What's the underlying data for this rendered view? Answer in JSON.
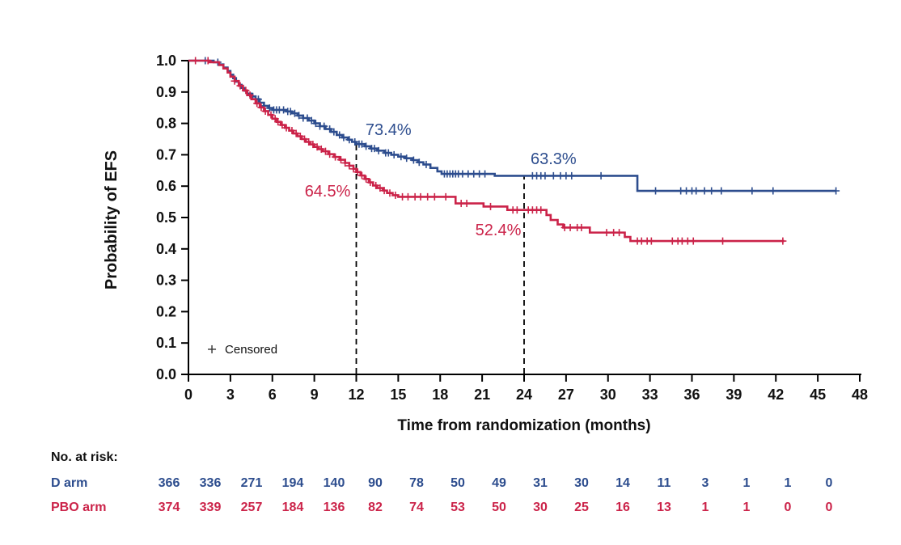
{
  "chart_data": {
    "type": "line",
    "subtype": "kaplan-meier-step",
    "xlabel": "Time from randomization (months)",
    "ylabel": "Probability of EFS",
    "xlim": [
      0,
      48
    ],
    "ylim": [
      0.0,
      1.0
    ],
    "grid": false,
    "x_ticks": [
      0,
      3,
      6,
      9,
      12,
      15,
      18,
      21,
      24,
      27,
      30,
      33,
      36,
      39,
      42,
      45,
      48
    ],
    "y_ticks": [
      "0.0",
      "0.1",
      "0.2",
      "0.3",
      "0.4",
      "0.5",
      "0.6",
      "0.7",
      "0.8",
      "0.9",
      "1.0"
    ],
    "reference_lines": [
      {
        "x": 12,
        "y_top": 0.734,
        "style": "dashed"
      },
      {
        "x": 24,
        "y_top": 0.633,
        "style": "dashed"
      }
    ],
    "annotations": [
      {
        "text": "73.4%",
        "x": 14.3,
        "y": 0.781,
        "color": "#2d4d8e"
      },
      {
        "text": "64.5%",
        "x": 9.95,
        "y": 0.585,
        "color": "#cb2349"
      },
      {
        "text": "63.3%",
        "x": 26.1,
        "y": 0.688,
        "color": "#2d4d8e"
      },
      {
        "text": "52.4%",
        "x": 22.15,
        "y": 0.461,
        "color": "#cb2349"
      }
    ],
    "censored_legend": {
      "marker": "+",
      "label": "Censored",
      "x": 1.68,
      "y": 0.08
    },
    "series": [
      {
        "name": "D arm",
        "color": "#2d4d8e",
        "milestones": [
          {
            "month": 12,
            "value_pct": "73.4%"
          },
          {
            "month": 24,
            "value_pct": "63.3%"
          }
        ],
        "steps": [
          [
            0,
            1.0
          ],
          [
            1.8,
            0.995
          ],
          [
            2.2,
            0.988
          ],
          [
            2.5,
            0.978
          ],
          [
            2.8,
            0.967
          ],
          [
            3.0,
            0.955
          ],
          [
            3.2,
            0.944
          ],
          [
            3.4,
            0.933
          ],
          [
            3.6,
            0.923
          ],
          [
            3.8,
            0.913
          ],
          [
            4.0,
            0.904
          ],
          [
            4.2,
            0.895
          ],
          [
            4.5,
            0.886
          ],
          [
            4.8,
            0.877
          ],
          [
            5.1,
            0.866
          ],
          [
            5.4,
            0.856
          ],
          [
            5.7,
            0.849
          ],
          [
            6.0,
            0.843
          ],
          [
            7.0,
            0.838
          ],
          [
            7.4,
            0.832
          ],
          [
            7.8,
            0.825
          ],
          [
            8.2,
            0.817
          ],
          [
            8.6,
            0.809
          ],
          [
            9.0,
            0.8
          ],
          [
            9.4,
            0.791
          ],
          [
            9.8,
            0.782
          ],
          [
            10.2,
            0.773
          ],
          [
            10.6,
            0.763
          ],
          [
            11.0,
            0.755
          ],
          [
            11.4,
            0.748
          ],
          [
            11.7,
            0.741
          ],
          [
            12.0,
            0.734
          ],
          [
            12.6,
            0.727
          ],
          [
            13.0,
            0.72
          ],
          [
            13.5,
            0.713
          ],
          [
            14.0,
            0.706
          ],
          [
            14.5,
            0.7
          ],
          [
            15.0,
            0.694
          ],
          [
            15.5,
            0.689
          ],
          [
            16.0,
            0.683
          ],
          [
            16.4,
            0.676
          ],
          [
            16.8,
            0.669
          ],
          [
            17.3,
            0.658
          ],
          [
            17.8,
            0.647
          ],
          [
            18.1,
            0.639
          ],
          [
            21.9,
            0.633
          ],
          [
            32.1,
            0.585
          ]
        ],
        "end_month": 46.3,
        "censor_times": [
          1.2,
          2.1,
          4.6,
          5.0,
          5.4,
          5.8,
          6.1,
          6.3,
          6.5,
          6.8,
          7.1,
          7.3,
          7.6,
          7.9,
          8.2,
          8.5,
          8.8,
          9.1,
          9.4,
          9.7,
          10.1,
          10.4,
          10.8,
          11.1,
          11.5,
          11.9,
          12.2,
          12.4,
          12.7,
          13.1,
          13.3,
          13.6,
          14.1,
          14.3,
          14.7,
          15.2,
          15.6,
          16.1,
          16.5,
          17.0,
          18.3,
          18.5,
          18.7,
          18.9,
          19.1,
          19.3,
          19.6,
          20.0,
          20.4,
          20.8,
          21.2,
          24.6,
          24.9,
          25.2,
          25.5,
          26.1,
          26.6,
          27.0,
          27.4,
          29.5,
          33.4,
          35.2,
          35.6,
          36.0,
          36.3,
          36.9,
          37.4,
          38.1,
          40.3,
          41.8,
          46.3
        ]
      },
      {
        "name": "PBO arm",
        "color": "#cb2349",
        "milestones": [
          {
            "month": 12,
            "value_pct": "64.5%"
          },
          {
            "month": 24,
            "value_pct": "52.4%"
          }
        ],
        "steps": [
          [
            0,
            1.0
          ],
          [
            1.5,
            0.995
          ],
          [
            2.2,
            0.986
          ],
          [
            2.5,
            0.975
          ],
          [
            2.8,
            0.962
          ],
          [
            3.0,
            0.949
          ],
          [
            3.3,
            0.935
          ],
          [
            3.6,
            0.92
          ],
          [
            3.9,
            0.905
          ],
          [
            4.2,
            0.89
          ],
          [
            4.5,
            0.877
          ],
          [
            4.8,
            0.864
          ],
          [
            5.1,
            0.851
          ],
          [
            5.4,
            0.839
          ],
          [
            5.7,
            0.827
          ],
          [
            6.0,
            0.815
          ],
          [
            6.3,
            0.805
          ],
          [
            6.6,
            0.795
          ],
          [
            6.9,
            0.786
          ],
          [
            7.2,
            0.777
          ],
          [
            7.5,
            0.768
          ],
          [
            7.8,
            0.759
          ],
          [
            8.1,
            0.75
          ],
          [
            8.4,
            0.741
          ],
          [
            8.7,
            0.733
          ],
          [
            9.0,
            0.725
          ],
          [
            9.3,
            0.718
          ],
          [
            9.6,
            0.711
          ],
          [
            10.0,
            0.702
          ],
          [
            10.4,
            0.693
          ],
          [
            10.8,
            0.684
          ],
          [
            11.2,
            0.674
          ],
          [
            11.5,
            0.665
          ],
          [
            11.8,
            0.655
          ],
          [
            12.0,
            0.645
          ],
          [
            12.3,
            0.634
          ],
          [
            12.6,
            0.623
          ],
          [
            12.9,
            0.612
          ],
          [
            13.2,
            0.602
          ],
          [
            13.5,
            0.594
          ],
          [
            13.9,
            0.586
          ],
          [
            14.2,
            0.578
          ],
          [
            14.6,
            0.571
          ],
          [
            15.0,
            0.566
          ],
          [
            19.1,
            0.545
          ],
          [
            21.1,
            0.535
          ],
          [
            22.8,
            0.524
          ],
          [
            25.6,
            0.508
          ],
          [
            25.9,
            0.492
          ],
          [
            26.4,
            0.478
          ],
          [
            26.8,
            0.468
          ],
          [
            28.7,
            0.452
          ],
          [
            31.2,
            0.438
          ],
          [
            31.6,
            0.425
          ]
        ],
        "end_month": 42.6,
        "censor_times": [
          0.5,
          1.4,
          3.3,
          3.7,
          4.1,
          4.4,
          4.9,
          5.2,
          5.5,
          5.9,
          6.2,
          6.4,
          6.7,
          7.0,
          7.4,
          7.7,
          8.0,
          8.3,
          8.6,
          8.9,
          9.2,
          9.5,
          9.8,
          10.1,
          10.5,
          10.9,
          11.2,
          11.5,
          11.8,
          12.1,
          12.4,
          12.7,
          13.0,
          13.4,
          13.7,
          14.0,
          14.4,
          14.8,
          15.3,
          15.7,
          16.2,
          16.6,
          17.1,
          17.6,
          18.4,
          19.5,
          19.9,
          21.6,
          23.2,
          23.5,
          24.3,
          24.6,
          24.9,
          25.2,
          26.9,
          27.3,
          27.8,
          28.1,
          29.9,
          30.4,
          30.8,
          32.1,
          32.4,
          32.8,
          33.1,
          34.6,
          35.0,
          35.3,
          35.7,
          36.1,
          38.2,
          42.5
        ]
      }
    ]
  },
  "risk_table": {
    "title": "No. at risk:",
    "time_points": [
      0,
      3,
      6,
      9,
      12,
      15,
      18,
      21,
      24,
      27,
      30,
      33,
      36,
      39,
      42,
      45,
      48
    ],
    "rows": [
      {
        "label": "D arm",
        "color": "#2d4d8e",
        "counts": [
          366,
          336,
          271,
          194,
          140,
          90,
          78,
          50,
          49,
          31,
          30,
          14,
          11,
          3,
          1,
          1,
          0
        ]
      },
      {
        "label": "PBO arm",
        "color": "#cb2349",
        "counts": [
          374,
          339,
          257,
          184,
          136,
          82,
          74,
          53,
          50,
          30,
          25,
          16,
          13,
          1,
          1,
          0,
          0
        ]
      }
    ]
  }
}
